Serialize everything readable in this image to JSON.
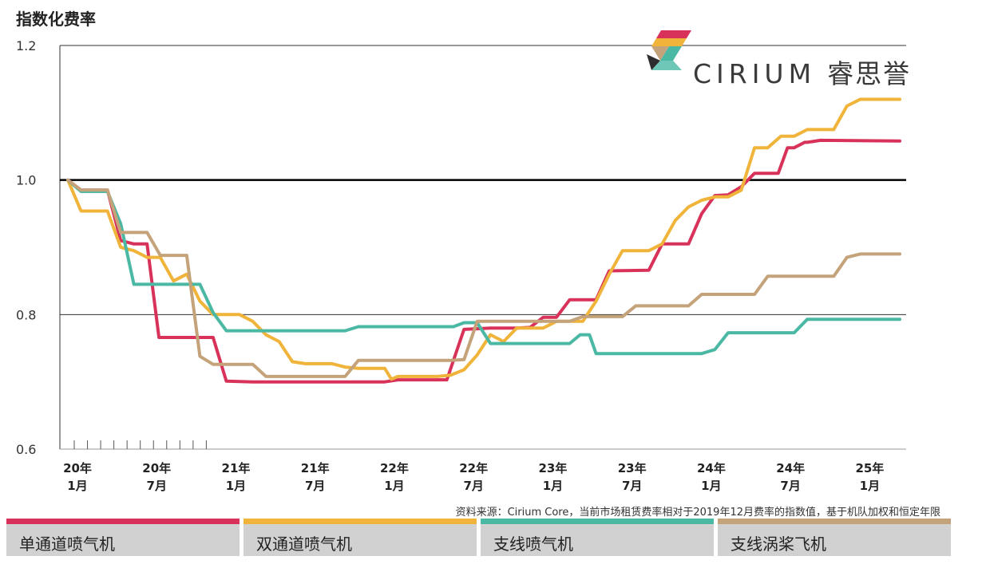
{
  "chart_data": {
    "type": "line",
    "ylabel": "指数化费率",
    "ylim": [
      0.6,
      1.2
    ],
    "yticks": [
      "0.6",
      "0.8",
      "1.0",
      "1.2"
    ],
    "reference_line": 1.0,
    "xlim": [
      0,
      64
    ],
    "xticks": [
      {
        "t": 0,
        "year": "20年",
        "month": "1月"
      },
      {
        "t": 6,
        "year": "20年",
        "month": "7月"
      },
      {
        "t": 12,
        "year": "21年",
        "month": "1月"
      },
      {
        "t": 18,
        "year": "21年",
        "month": "7月"
      },
      {
        "t": 24,
        "year": "22年",
        "month": "1月"
      },
      {
        "t": 30,
        "year": "22年",
        "month": "7月"
      },
      {
        "t": 36,
        "year": "23年",
        "month": "1月"
      },
      {
        "t": 42,
        "year": "23年",
        "month": "7月"
      },
      {
        "t": 48,
        "year": "24年",
        "month": "1月"
      },
      {
        "t": 54,
        "year": "24年",
        "month": "7月"
      },
      {
        "t": 60,
        "year": "25年",
        "month": "1月"
      }
    ],
    "minor_ticks": [
      0,
      1,
      2,
      3,
      4,
      5,
      6,
      7,
      8,
      9,
      10
    ],
    "series": [
      {
        "name": "单通道喷气机",
        "color": "#d8325a",
        "points": [
          [
            0,
            1.0
          ],
          [
            1,
            0.985
          ],
          [
            3,
            0.985
          ],
          [
            4,
            0.91
          ],
          [
            5,
            0.905
          ],
          [
            6,
            0.905
          ],
          [
            6.9,
            0.766
          ],
          [
            8,
            0.766
          ],
          [
            10,
            0.766
          ],
          [
            11,
            0.766
          ],
          [
            12,
            0.701
          ],
          [
            14,
            0.7
          ],
          [
            16,
            0.7
          ],
          [
            18,
            0.7
          ],
          [
            20,
            0.7
          ],
          [
            22,
            0.7
          ],
          [
            24,
            0.7
          ],
          [
            25,
            0.703
          ],
          [
            27,
            0.703
          ],
          [
            28.7,
            0.703
          ],
          [
            30,
            0.778
          ],
          [
            32,
            0.78
          ],
          [
            34,
            0.78
          ],
          [
            35,
            0.781
          ],
          [
            36,
            0.796
          ],
          [
            37,
            0.796
          ],
          [
            38,
            0.822
          ],
          [
            40,
            0.822
          ],
          [
            41,
            0.865
          ],
          [
            44,
            0.866
          ],
          [
            45,
            0.905
          ],
          [
            47,
            0.905
          ],
          [
            48,
            0.95
          ],
          [
            49,
            0.977
          ],
          [
            50,
            0.978
          ],
          [
            51,
            0.99
          ],
          [
            52,
            1.01
          ],
          [
            53.8,
            1.01
          ],
          [
            54.5,
            1.048
          ],
          [
            55,
            1.048
          ],
          [
            55.8,
            1.056
          ],
          [
            56,
            1.056
          ],
          [
            57,
            1.059
          ],
          [
            63,
            1.058
          ]
        ]
      },
      {
        "name": "双通道喷气机",
        "color": "#f0b43a",
        "points": [
          [
            0,
            1.0
          ],
          [
            1,
            0.954
          ],
          [
            3,
            0.954
          ],
          [
            4,
            0.9
          ],
          [
            5,
            0.895
          ],
          [
            6,
            0.885
          ],
          [
            7,
            0.885
          ],
          [
            8,
            0.85
          ],
          [
            9,
            0.86
          ],
          [
            10,
            0.82
          ],
          [
            11,
            0.8
          ],
          [
            13,
            0.8
          ],
          [
            14,
            0.79
          ],
          [
            15,
            0.77
          ],
          [
            16,
            0.76
          ],
          [
            17,
            0.73
          ],
          [
            18,
            0.727
          ],
          [
            20,
            0.727
          ],
          [
            21,
            0.722
          ],
          [
            22,
            0.72
          ],
          [
            24,
            0.72
          ],
          [
            24.5,
            0.704
          ],
          [
            25,
            0.708
          ],
          [
            28,
            0.708
          ],
          [
            29,
            0.71
          ],
          [
            30,
            0.718
          ],
          [
            31,
            0.74
          ],
          [
            32,
            0.77
          ],
          [
            33,
            0.76
          ],
          [
            34,
            0.78
          ],
          [
            36,
            0.78
          ],
          [
            37,
            0.79
          ],
          [
            39,
            0.79
          ],
          [
            40,
            0.82
          ],
          [
            41,
            0.86
          ],
          [
            42,
            0.895
          ],
          [
            44,
            0.895
          ],
          [
            45,
            0.905
          ],
          [
            46,
            0.94
          ],
          [
            47,
            0.96
          ],
          [
            48,
            0.97
          ],
          [
            49,
            0.975
          ],
          [
            50,
            0.975
          ],
          [
            51,
            0.985
          ],
          [
            52,
            1.048
          ],
          [
            53,
            1.048
          ],
          [
            54,
            1.065
          ],
          [
            55,
            1.065
          ],
          [
            56,
            1.075
          ],
          [
            58,
            1.075
          ],
          [
            59,
            1.11
          ],
          [
            60,
            1.12
          ],
          [
            63,
            1.12
          ]
        ]
      },
      {
        "name": "支线喷气机",
        "color": "#4bb8a4",
        "points": [
          [
            0,
            1.0
          ],
          [
            1,
            0.983
          ],
          [
            3,
            0.983
          ],
          [
            4,
            0.935
          ],
          [
            5,
            0.845
          ],
          [
            6,
            0.845
          ],
          [
            10,
            0.845
          ],
          [
            11,
            0.803
          ],
          [
            12,
            0.776
          ],
          [
            14,
            0.776
          ],
          [
            21,
            0.776
          ],
          [
            22,
            0.782
          ],
          [
            29.2,
            0.782
          ],
          [
            30,
            0.788
          ],
          [
            31,
            0.788
          ],
          [
            32,
            0.757
          ],
          [
            33,
            0.757
          ],
          [
            38,
            0.757
          ],
          [
            38.8,
            0.77
          ],
          [
            39.5,
            0.77
          ],
          [
            40,
            0.742
          ],
          [
            47,
            0.742
          ],
          [
            48,
            0.742
          ],
          [
            49,
            0.748
          ],
          [
            50,
            0.773
          ],
          [
            55,
            0.773
          ],
          [
            56,
            0.793
          ],
          [
            63,
            0.793
          ]
        ]
      },
      {
        "name": "支线涡桨飞机",
        "color": "#c4a27a",
        "points": [
          [
            0,
            1.0
          ],
          [
            1,
            0.985
          ],
          [
            3,
            0.985
          ],
          [
            4,
            0.922
          ],
          [
            6,
            0.922
          ],
          [
            7,
            0.888
          ],
          [
            9,
            0.888
          ],
          [
            10,
            0.738
          ],
          [
            11,
            0.726
          ],
          [
            14,
            0.726
          ],
          [
            15,
            0.708
          ],
          [
            21,
            0.708
          ],
          [
            22,
            0.732
          ],
          [
            29,
            0.732
          ],
          [
            30,
            0.733
          ],
          [
            31,
            0.79
          ],
          [
            33,
            0.79
          ],
          [
            38,
            0.79
          ],
          [
            39,
            0.797
          ],
          [
            42,
            0.797
          ],
          [
            43,
            0.813
          ],
          [
            47,
            0.813
          ],
          [
            48,
            0.83
          ],
          [
            52,
            0.83
          ],
          [
            53,
            0.857
          ],
          [
            58,
            0.857
          ],
          [
            59,
            0.885
          ],
          [
            60,
            0.89
          ],
          [
            63,
            0.89
          ]
        ]
      }
    ]
  },
  "source_note": "资料来源：Cirium Core，当前市场租赁费率相对于2019年12月费率的指数值，基于机队加权和恒定年限",
  "logo": {
    "brand": "CIRIUM",
    "brand_cn": "睿思誉"
  }
}
